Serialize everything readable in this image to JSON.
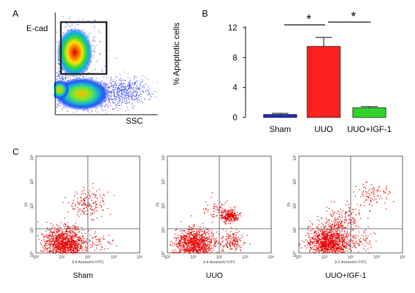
{
  "panels": {
    "a": {
      "letter": "A",
      "y_label": "E-cad",
      "x_label": "SSC"
    },
    "b": {
      "letter": "B"
    },
    "c": {
      "letter": "C"
    }
  },
  "chart_data": [
    {
      "type": "bar",
      "categories": [
        "Sham",
        "UUO",
        "UUO+IGF-1"
      ],
      "values": [
        0.4,
        9.5,
        1.3
      ],
      "errors": [
        0.15,
        1.2,
        0.15
      ],
      "colors": [
        "#1f2fc4",
        "#ff2020",
        "#31d42a"
      ],
      "ylabel": "% Apoptotic cells",
      "xlabel": "",
      "title": "",
      "ylim": [
        0,
        12
      ],
      "yticks": [
        0,
        4,
        8,
        12
      ],
      "significance": [
        {
          "from": "Sham",
          "to": "UUO",
          "label": "*"
        },
        {
          "from": "UUO",
          "to": "UUO+IGF-1",
          "label": "*"
        }
      ]
    },
    {
      "type": "scatter",
      "title": "Sham",
      "xlabel": "3-4 AnnexinV FITC",
      "ylabel": "PI",
      "x_scale": "log",
      "y_scale": "log",
      "xlim": [
        1,
        10000
      ],
      "ylim": [
        1,
        10000
      ],
      "gate": [
        100,
        10
      ],
      "clusters": [
        {
          "x": 12,
          "y": 2.5,
          "spread": 0.55,
          "count": 1200
        },
        {
          "x": 100,
          "y": 120,
          "spread": 0.45,
          "count": 160
        },
        {
          "x": 300,
          "y": 3,
          "spread": 0.35,
          "count": 40
        }
      ]
    },
    {
      "type": "scatter",
      "title": "UUO",
      "xlabel": "2-4 AnnexinV FITC",
      "ylabel": "PI",
      "x_scale": "log",
      "y_scale": "log",
      "xlim": [
        1,
        10000
      ],
      "ylim": [
        1,
        10000
      ],
      "gate": [
        100,
        10
      ],
      "clusters": [
        {
          "x": 12,
          "y": 2.5,
          "spread": 0.5,
          "count": 1000
        },
        {
          "x": 250,
          "y": 35,
          "spread": 0.22,
          "count": 260
        },
        {
          "x": 300,
          "y": 3,
          "spread": 0.35,
          "count": 150
        },
        {
          "x": 80,
          "y": 60,
          "spread": 0.35,
          "count": 60
        }
      ]
    },
    {
      "type": "scatter",
      "title": "UUO+IGF-1",
      "xlabel": "3-2 AnnexinV FITC",
      "ylabel": "PI",
      "x_scale": "log",
      "y_scale": "log",
      "xlim": [
        1,
        10000
      ],
      "ylim": [
        1,
        10000
      ],
      "gate": [
        100,
        10
      ],
      "clusters": [
        {
          "x": 15,
          "y": 3,
          "spread": 0.55,
          "count": 1200
        },
        {
          "x": 50,
          "y": 30,
          "spread": 0.45,
          "count": 140
        },
        {
          "x": 600,
          "y": 300,
          "spread": 0.45,
          "count": 90
        },
        {
          "x": 300,
          "y": 3,
          "spread": 0.35,
          "count": 50
        }
      ]
    }
  ],
  "scatter_axis_ticks": [
    "10⁰",
    "10¹",
    "10²",
    "10³",
    "10⁴"
  ]
}
